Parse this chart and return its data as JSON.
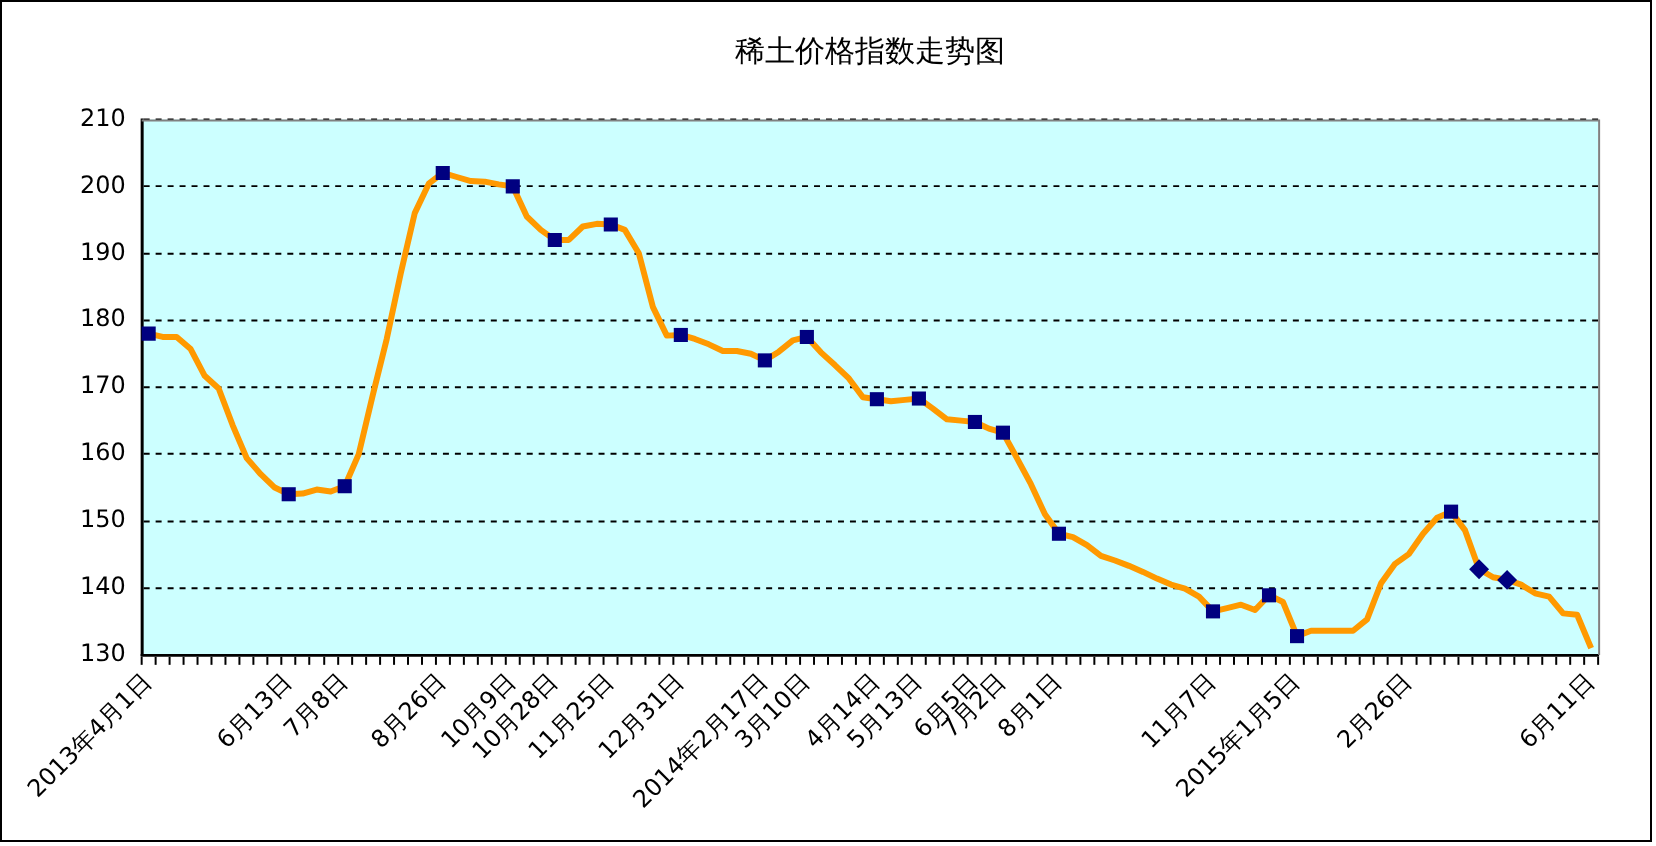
{
  "chart_data": {
    "type": "line",
    "title": "稀土价格指数走势图",
    "categories": [
      "2013年4月1日",
      null,
      null,
      null,
      null,
      null,
      null,
      null,
      null,
      null,
      "6月13日",
      null,
      null,
      null,
      "7月8日",
      null,
      null,
      null,
      null,
      null,
      null,
      "8月26日",
      null,
      null,
      null,
      null,
      "10月9日",
      null,
      null,
      "10月28日",
      null,
      null,
      null,
      "11月25日",
      null,
      null,
      null,
      null,
      "12月31日",
      null,
      null,
      null,
      null,
      null,
      "2014年2月17日",
      null,
      null,
      "3月10日",
      null,
      null,
      null,
      null,
      "4月14日",
      null,
      null,
      "5月13日",
      null,
      null,
      null,
      "6月5日",
      null,
      "7月2日",
      null,
      null,
      null,
      "8月1日",
      null,
      null,
      null,
      null,
      null,
      null,
      null,
      null,
      null,
      null,
      "11月7日",
      null,
      null,
      null,
      null,
      null,
      "2015年1月5日",
      null,
      null,
      null,
      null,
      null,
      null,
      null,
      "2月26日",
      null,
      null,
      null,
      null,
      null,
      null,
      null,
      null,
      null,
      null,
      null,
      null,
      "6月11日"
    ],
    "ylim": [
      130,
      210
    ],
    "yticks": [
      130,
      140,
      150,
      160,
      170,
      180,
      190,
      200,
      210
    ],
    "grid": "y",
    "legend": false,
    "series": [
      {
        "color": "#ff9900",
        "marker": "none",
        "line_style": "solid",
        "values": [
          178,
          177.5,
          177.5,
          175.7,
          171.7,
          169.8,
          164.3,
          159.4,
          157,
          155,
          154,
          154.1,
          154.7,
          154.4,
          155.2,
          160,
          168.8,
          177.2,
          187,
          196,
          200.4,
          202,
          201.4,
          200.8,
          200.7,
          200.3,
          200,
          195.5,
          193.5,
          192,
          192,
          194,
          194.4,
          194.3,
          193.5,
          190,
          182,
          177.7,
          177.8,
          177.2,
          176.4,
          175.4,
          175.4,
          175,
          174,
          175.3,
          177,
          177.5,
          175.2,
          173.3,
          171.3,
          168.5,
          168.2,
          167.9,
          168.1,
          168.3,
          166.8,
          165.2,
          165,
          164.8,
          163.8,
          163.2,
          159.4,
          155.5,
          151,
          148.1,
          147.6,
          146.4,
          144.8,
          144.1,
          143.3,
          142.4,
          141.4,
          140.5,
          139.9,
          138.7,
          136.5,
          137,
          137.5,
          136.7,
          138.9,
          137.9,
          132.8,
          133.6,
          133.6,
          133.6,
          133.6,
          135.3,
          140.7,
          143.6,
          145.1,
          148.1,
          150.5,
          151.4,
          148.6,
          142.8,
          141.6,
          141.2,
          140.5,
          139.2,
          138.7,
          136.2,
          136,
          131
        ]
      },
      {
        "type": "scatter",
        "color": "#000080",
        "marker": "square",
        "values": [
          178,
          null,
          null,
          null,
          null,
          null,
          null,
          null,
          null,
          null,
          154,
          null,
          null,
          null,
          155.2,
          null,
          null,
          null,
          null,
          null,
          null,
          202,
          null,
          null,
          null,
          null,
          200,
          null,
          null,
          192,
          null,
          null,
          null,
          194.3,
          null,
          null,
          null,
          null,
          177.8,
          null,
          null,
          null,
          null,
          null,
          174,
          null,
          null,
          177.5,
          null,
          null,
          null,
          null,
          168.2,
          null,
          null,
          168.3,
          null,
          null,
          null,
          164.8,
          null,
          163.2,
          null,
          null,
          null,
          148.1,
          null,
          null,
          null,
          null,
          null,
          null,
          null,
          null,
          null,
          null,
          136.5,
          null,
          null,
          null,
          138.9,
          null,
          132.8,
          null,
          null,
          null,
          null,
          null,
          null,
          null,
          null,
          null,
          null,
          151.4,
          null,
          null,
          null,
          null,
          null,
          null,
          null,
          null,
          null,
          null
        ]
      },
      {
        "type": "scatter",
        "color": "#000080",
        "marker": "diamond",
        "values": [
          null,
          null,
          null,
          null,
          null,
          null,
          null,
          null,
          null,
          null,
          null,
          null,
          null,
          null,
          null,
          null,
          null,
          null,
          null,
          null,
          null,
          null,
          null,
          null,
          null,
          null,
          null,
          null,
          null,
          null,
          null,
          null,
          null,
          null,
          null,
          null,
          null,
          null,
          null,
          null,
          null,
          null,
          null,
          null,
          null,
          null,
          null,
          null,
          null,
          null,
          null,
          null,
          null,
          null,
          null,
          null,
          null,
          null,
          null,
          null,
          null,
          null,
          null,
          null,
          null,
          null,
          null,
          null,
          null,
          null,
          null,
          null,
          null,
          null,
          null,
          null,
          null,
          null,
          null,
          null,
          null,
          null,
          null,
          null,
          null,
          null,
          null,
          null,
          null,
          null,
          null,
          null,
          null,
          null,
          null,
          142.8,
          null,
          141.2,
          null,
          null,
          null,
          null,
          null,
          null
        ]
      }
    ]
  }
}
